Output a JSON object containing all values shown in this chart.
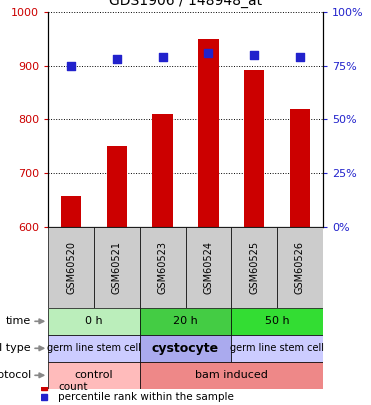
{
  "title": "GDS1906 / 148948_at",
  "samples": [
    "GSM60520",
    "GSM60521",
    "GSM60523",
    "GSM60524",
    "GSM60525",
    "GSM60526"
  ],
  "counts": [
    657,
    750,
    810,
    950,
    893,
    820
  ],
  "percentile_ranks": [
    75,
    78,
    79,
    81,
    80,
    79
  ],
  "ylim_left": [
    600,
    1000
  ],
  "ylim_right": [
    0,
    100
  ],
  "left_ticks": [
    600,
    700,
    800,
    900,
    1000
  ],
  "right_ticks": [
    0,
    25,
    50,
    75,
    100
  ],
  "right_tick_labels": [
    "0%",
    "25%",
    "50%",
    "75%",
    "100%"
  ],
  "bar_color": "#cc0000",
  "dot_color": "#2222cc",
  "bar_width": 0.45,
  "sample_bg_color": "#cccccc",
  "time_groups": [
    {
      "label": "0 h",
      "span": [
        0,
        2
      ],
      "color": "#bbeebb"
    },
    {
      "label": "20 h",
      "span": [
        2,
        4
      ],
      "color": "#44cc44"
    },
    {
      "label": "50 h",
      "span": [
        4,
        6
      ],
      "color": "#33dd33"
    }
  ],
  "celltype_groups": [
    {
      "label": "germ line stem cell",
      "span": [
        0,
        2
      ],
      "color": "#ccccff",
      "fontsize": 7,
      "bold": false
    },
    {
      "label": "cystocyte",
      "span": [
        2,
        4
      ],
      "color": "#aaaaee",
      "fontsize": 9,
      "bold": true
    },
    {
      "label": "germ line stem cell",
      "span": [
        4,
        6
      ],
      "color": "#ccccff",
      "fontsize": 7,
      "bold": false
    }
  ],
  "protocol_groups": [
    {
      "label": "control",
      "span": [
        0,
        2
      ],
      "color": "#ffbbbb"
    },
    {
      "label": "bam induced",
      "span": [
        2,
        6
      ],
      "color": "#ee8888"
    }
  ],
  "row_labels": [
    "time",
    "cell type",
    "protocol"
  ],
  "legend_items": [
    {
      "color": "#cc0000",
      "label": "count"
    },
    {
      "color": "#2222cc",
      "label": "percentile rank within the sample"
    }
  ],
  "left_tick_color": "#cc0000",
  "right_tick_color": "#2222cc"
}
